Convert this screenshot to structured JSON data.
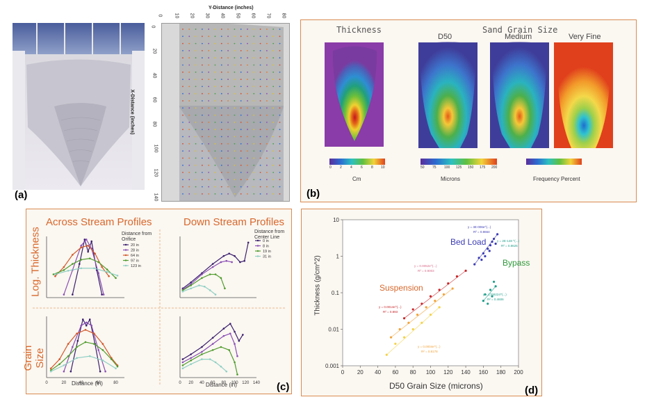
{
  "panel_labels": {
    "a": "(a)",
    "b": "(b)",
    "c": "(c)",
    "d": "(d)"
  },
  "grid_plot": {
    "y_axis_title": "Y-Distance (inches)",
    "y_ticks": [
      "0",
      "10",
      "20",
      "30",
      "40",
      "50",
      "60",
      "70",
      "80"
    ],
    "x_axis_title": "X-Distance (inches)",
    "x_ticks": [
      "0",
      "20",
      "40",
      "60",
      "80",
      "100",
      "120",
      "140"
    ]
  },
  "panel_b": {
    "thickness_title": "Thickness",
    "grain_title": "Sand Grain Size",
    "d50_title": "D50",
    "medium_title": "Medium",
    "veryfine_title": "Very Fine",
    "cm_label": "Cm",
    "microns_label": "Microns",
    "freq_label": "Frequency Percent",
    "cm_ticks": [
      "0",
      "2",
      "4",
      "6",
      "8",
      "10"
    ],
    "micron_ticks": [
      "50",
      "75",
      "100",
      "125",
      "150",
      "175",
      "200"
    ]
  },
  "panel_c": {
    "across_title": "Across Stream Profiles",
    "down_title": "Down Stream Profiles",
    "log_thickness_label": "Log. Thickness",
    "grain_size_label": "Grain Size",
    "across_legend_title": "Distance from Orifice",
    "down_legend_title": "Distance from Center Line",
    "x_label": "Distance (in)",
    "across_x_ticks": [
      "0",
      "20",
      "40",
      "60",
      "80"
    ],
    "down_x_ticks": [
      "0",
      "20",
      "40",
      "60",
      "80",
      "100",
      "120",
      "140"
    ]
  },
  "chart_data": [
    {
      "type": "line",
      "panel": "c-top-left",
      "xlabel": "Distance (in)",
      "ylabel": "Log. Thickness",
      "xlim": [
        0,
        90
      ],
      "ylim": [
        0,
        1
      ],
      "series": [
        {
          "name": "20 in",
          "color": "#3a1f6e",
          "x": [
            30,
            38,
            44,
            48,
            52,
            58,
            64
          ],
          "y": [
            0.05,
            0.55,
            0.95,
            0.75,
            0.92,
            0.45,
            0.05
          ]
        },
        {
          "name": "28 in",
          "color": "#8a4fb5",
          "x": [
            20,
            30,
            40,
            46,
            52,
            60,
            66
          ],
          "y": [
            0.05,
            0.45,
            0.85,
            0.95,
            0.8,
            0.4,
            0.05
          ]
        },
        {
          "name": "64 in",
          "color": "#d4582a",
          "x": [
            10,
            20,
            30,
            40,
            48,
            56,
            64,
            72
          ],
          "y": [
            0.35,
            0.5,
            0.7,
            0.82,
            0.85,
            0.72,
            0.5,
            0.35
          ]
        },
        {
          "name": "97 in",
          "color": "#4f9b2c",
          "x": [
            8,
            20,
            30,
            40,
            50,
            60,
            70,
            80
          ],
          "y": [
            0.38,
            0.45,
            0.55,
            0.62,
            0.64,
            0.58,
            0.46,
            0.32
          ]
        },
        {
          "name": "123 in",
          "color": "#8fd0c4",
          "x": [
            10,
            25,
            40,
            55,
            70,
            82
          ],
          "y": [
            0.38,
            0.44,
            0.48,
            0.48,
            0.42,
            0.36
          ]
        }
      ]
    },
    {
      "type": "line",
      "panel": "c-top-right",
      "xlabel": "Distance (in)",
      "ylabel": "Log. Thickness",
      "xlim": [
        0,
        140
      ],
      "ylim": [
        0,
        1
      ],
      "series": [
        {
          "name": "0 in",
          "color": "#3a1f6e",
          "x": [
            5,
            20,
            40,
            60,
            80,
            90,
            100,
            110,
            118,
            125
          ],
          "y": [
            0.15,
            0.25,
            0.4,
            0.55,
            0.68,
            0.72,
            0.68,
            0.58,
            0.6,
            0.9
          ]
        },
        {
          "name": "8 in",
          "color": "#8a4fb5",
          "x": [
            5,
            20,
            40,
            60,
            75,
            85,
            95
          ],
          "y": [
            0.13,
            0.22,
            0.38,
            0.5,
            0.58,
            0.6,
            0.58
          ]
        },
        {
          "name": "19 in",
          "color": "#4f9b2c",
          "x": [
            5,
            20,
            40,
            55,
            65,
            75,
            82
          ],
          "y": [
            0.12,
            0.2,
            0.32,
            0.38,
            0.38,
            0.32,
            0.15
          ]
        },
        {
          "name": "31 in",
          "color": "#8fd0c4",
          "x": [
            5,
            20,
            35,
            45,
            55,
            65
          ],
          "y": [
            0.1,
            0.15,
            0.2,
            0.18,
            0.12,
            0.05
          ]
        }
      ]
    },
    {
      "type": "line",
      "panel": "c-bottom-left",
      "xlabel": "Distance (in)",
      "ylabel": "Grain Size",
      "xlim": [
        0,
        90
      ],
      "ylim": [
        0,
        1
      ],
      "series": [
        {
          "name": "20 in",
          "color": "#3a1f6e",
          "x": [
            28,
            36,
            42,
            46,
            50,
            56,
            62
          ],
          "y": [
            0.1,
            0.6,
            0.95,
            0.85,
            0.95,
            0.55,
            0.1
          ]
        },
        {
          "name": "28 in",
          "color": "#8a4fb5",
          "x": [
            20,
            30,
            40,
            46,
            52,
            60,
            68
          ],
          "y": [
            0.1,
            0.5,
            0.85,
            0.9,
            0.85,
            0.45,
            0.1
          ]
        },
        {
          "name": "64 in",
          "color": "#d4582a",
          "x": [
            5,
            15,
            25,
            35,
            45,
            55,
            65,
            75,
            82
          ],
          "y": [
            0.15,
            0.3,
            0.55,
            0.72,
            0.78,
            0.72,
            0.55,
            0.32,
            0.2
          ]
        },
        {
          "name": "97 in",
          "color": "#4f9b2c",
          "x": [
            5,
            15,
            25,
            35,
            45,
            55,
            65,
            75,
            82
          ],
          "y": [
            0.12,
            0.22,
            0.35,
            0.5,
            0.58,
            0.55,
            0.45,
            0.3,
            0.18
          ]
        },
        {
          "name": "123 in",
          "color": "#8fd0c4",
          "x": [
            5,
            20,
            35,
            50,
            65,
            80
          ],
          "y": [
            0.1,
            0.2,
            0.32,
            0.35,
            0.28,
            0.15
          ]
        }
      ]
    },
    {
      "type": "line",
      "panel": "c-bottom-right",
      "xlabel": "Distance (in)",
      "ylabel": "Grain Size",
      "xlim": [
        0,
        140
      ],
      "ylim": [
        0,
        1
      ],
      "series": [
        {
          "name": "0 in",
          "color": "#3a1f6e",
          "x": [
            5,
            20,
            40,
            60,
            80,
            92,
            100,
            108,
            115
          ],
          "y": [
            0.3,
            0.38,
            0.5,
            0.65,
            0.8,
            0.88,
            0.75,
            0.6,
            0.7
          ]
        },
        {
          "name": "8 in",
          "color": "#8a4fb5",
          "x": [
            5,
            20,
            40,
            60,
            80,
            92,
            100,
            105
          ],
          "y": [
            0.25,
            0.32,
            0.42,
            0.55,
            0.68,
            0.72,
            0.55,
            0.35
          ]
        },
        {
          "name": "19 in",
          "color": "#4f9b2c",
          "x": [
            5,
            20,
            40,
            60,
            75,
            90,
            100,
            105
          ],
          "y": [
            0.2,
            0.28,
            0.38,
            0.45,
            0.5,
            0.45,
            0.25,
            0.05
          ]
        },
        {
          "name": "31 in",
          "color": "#8fd0c4",
          "x": [
            5,
            20,
            40,
            55,
            65,
            75,
            85
          ],
          "y": [
            0.15,
            0.22,
            0.3,
            0.3,
            0.25,
            0.18,
            0.1
          ]
        }
      ]
    },
    {
      "type": "scatter",
      "panel": "d",
      "xlabel": "D50 Grain Size (microns)",
      "ylabel": "Thickness (g/cm^2)",
      "xlim": [
        0,
        200
      ],
      "ylim": [
        0.001,
        10
      ],
      "yscale": "log",
      "x_ticks": [
        "0",
        "20",
        "40",
        "60",
        "80",
        "100",
        "120",
        "140",
        "160",
        "180",
        "200"
      ],
      "y_ticks": [
        "0.001",
        "0.01",
        "0.1",
        "1",
        "10"
      ],
      "annotations": [
        "Bed Load",
        "Bypass",
        "Suspension"
      ],
      "equations": [
        "y = 4E-006e^(...)",
        "R² = 0.8664",
        "y = 2E-148 ^(...)",
        "R² = 0.8625",
        "y = 0.0052e^(...)",
        "R² = 0.9003",
        "y = 0.0014e^(...)",
        "R² = 0.893",
        "y = 1769224^(...)",
        "R² = 0.4606",
        "y = 0.0004e^(...)",
        "R² = 0.8178"
      ],
      "series": [
        {
          "name": "Bed Load",
          "color": "#3b3bb5",
          "x": [
            150,
            155,
            158,
            160,
            162,
            165,
            167,
            168,
            170,
            172,
            174,
            176
          ],
          "y": [
            0.6,
            0.9,
            0.8,
            1.2,
            1.0,
            1.6,
            1.4,
            2.0,
            2.5,
            3.0,
            2.2,
            4.0
          ]
        },
        {
          "name": "Bypass",
          "color": "#1f9e8a",
          "x": [
            160,
            162,
            165,
            168,
            170,
            172,
            174
          ],
          "y": [
            0.06,
            0.09,
            0.05,
            0.12,
            0.08,
            0.2,
            0.15
          ]
        },
        {
          "name": "Suspension (red)",
          "color": "#c8262a",
          "x": [
            70,
            80,
            90,
            100,
            110,
            120,
            130,
            140
          ],
          "y": [
            0.02,
            0.035,
            0.05,
            0.08,
            0.12,
            0.18,
            0.28,
            0.4
          ]
        },
        {
          "name": "Suspension (orange)",
          "color": "#f2a43c",
          "x": [
            55,
            65,
            75,
            85,
            95,
            105,
            115,
            125
          ],
          "y": [
            0.006,
            0.01,
            0.015,
            0.025,
            0.04,
            0.06,
            0.09,
            0.13
          ]
        },
        {
          "name": "Suspension (yellow)",
          "color": "#f4d34a",
          "x": [
            50,
            60,
            70,
            80,
            90,
            100,
            110
          ],
          "y": [
            0.002,
            0.004,
            0.006,
            0.01,
            0.015,
            0.025,
            0.04
          ]
        }
      ]
    }
  ]
}
